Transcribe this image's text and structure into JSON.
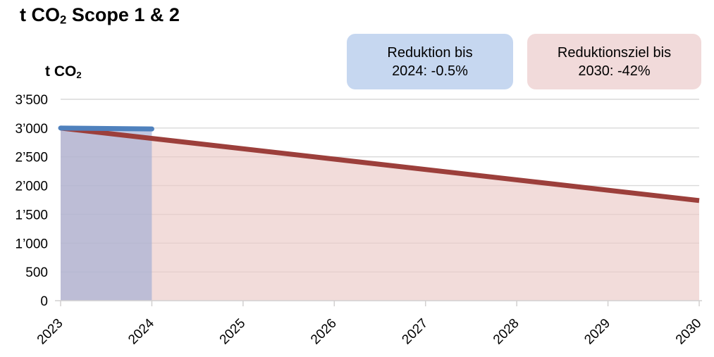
{
  "header": {
    "title_prefix": "t CO",
    "title_sub": "2",
    "title_suffix": " Scope 1 & 2"
  },
  "y_axis_title": {
    "prefix": "t CO",
    "sub": "2"
  },
  "chart_data": {
    "type": "area",
    "title": "t CO2 Scope 1 & 2",
    "xlabel": "",
    "ylabel": "t CO2",
    "xlim": [
      2023,
      2030
    ],
    "ylim": [
      0,
      3500
    ],
    "grid": true,
    "grid_color": "#d9d9d9",
    "axis_color": "#d2d0d0",
    "legend_position": "top-right",
    "x_ticks": [
      2023,
      2024,
      2025,
      2026,
      2027,
      2028,
      2029,
      2030
    ],
    "y_ticks": {
      "values": [
        0,
        500,
        1000,
        1500,
        2000,
        2500,
        3000,
        3500
      ],
      "labels": [
        "0",
        "500",
        "1’000",
        "1’500",
        "2’000",
        "2’500",
        "3’000",
        "3’500"
      ]
    },
    "series": [
      {
        "name": "Reduktion bis 2024: -0.5%",
        "x": [
          2023,
          2024
        ],
        "values": [
          3000,
          2985
        ],
        "line_color": "#4f81bd",
        "fill_color": "#a1add4",
        "fill": true,
        "line_cap": "round"
      },
      {
        "name": "Reduktionsziel bis 2030: -42%",
        "x": [
          2023,
          2030
        ],
        "values": [
          3000,
          1740
        ],
        "line_color": "#9c3f3b",
        "fill_color": "#ebcac7",
        "fill": true,
        "line_cap": "butt"
      }
    ],
    "annotations": [
      {
        "line1": "Reduktion bis",
        "line2": "2024: -0.5%",
        "bg": "#c6d7f0"
      },
      {
        "line1": "Reduktionsziel bis",
        "line2": "2030: -42%",
        "bg": "#f1dada"
      }
    ]
  }
}
